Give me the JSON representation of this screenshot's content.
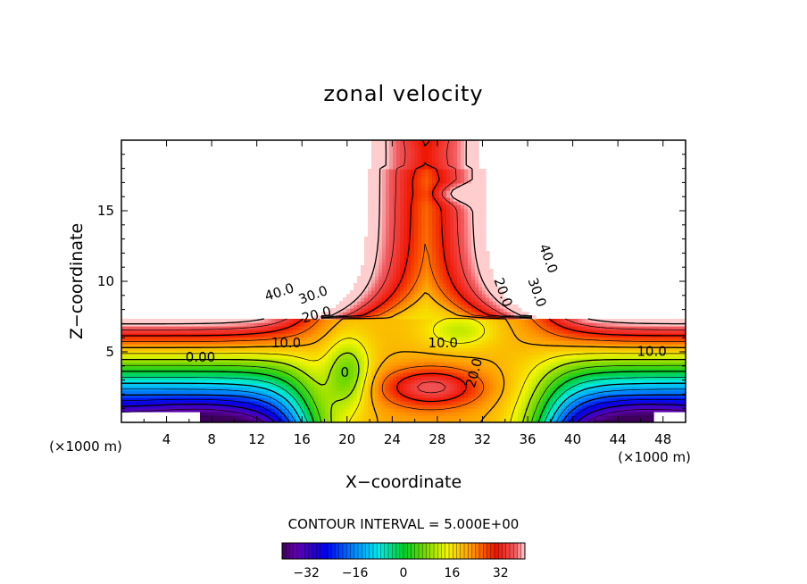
{
  "chart_data": {
    "type": "heatmap",
    "title": "zonal velocity",
    "xlabel": "X−coordinate",
    "ylabel": "Z−coordinate",
    "x_unit_label": "(×1000 m)",
    "xlim": [
      0,
      50
    ],
    "ylim": [
      0,
      20
    ],
    "x_ticks": [
      4,
      8,
      12,
      16,
      20,
      24,
      28,
      32,
      36,
      40,
      44,
      48
    ],
    "y_ticks": [
      5,
      10,
      15
    ],
    "contour_interval_text": "CONTOUR INTERVAL = 5.000E+00",
    "contour_interval": 5,
    "contour_labels": [
      {
        "text": "40.0",
        "x": 14.0,
        "y": 9.2,
        "angle": -18
      },
      {
        "text": "30.0",
        "x": 17.0,
        "y": 9.0,
        "angle": -20
      },
      {
        "text": "20.0",
        "x": 17.3,
        "y": 7.6,
        "angle": -15
      },
      {
        "text": "10.0",
        "x": 14.6,
        "y": 5.6,
        "angle": 0
      },
      {
        "text": "0.00",
        "x": 7.0,
        "y": 4.6,
        "angle": 0
      },
      {
        "text": "0",
        "x": 19.8,
        "y": 3.5,
        "angle": 0
      },
      {
        "text": "10.0",
        "x": 28.5,
        "y": 5.6,
        "angle": 0
      },
      {
        "text": "20.0",
        "x": 31.3,
        "y": 3.5,
        "angle": -75
      },
      {
        "text": "20.0",
        "x": 33.8,
        "y": 9.2,
        "angle": 70
      },
      {
        "text": "30.0",
        "x": 36.8,
        "y": 9.2,
        "angle": 70
      },
      {
        "text": "40.0",
        "x": 37.8,
        "y": 11.6,
        "angle": 70
      },
      {
        "text": "10.0",
        "x": 47.0,
        "y": 5.0,
        "angle": 0
      }
    ],
    "colorbar": {
      "vmin": -40,
      "vmax": 40,
      "ticks": [
        -32,
        -16,
        0,
        16,
        32
      ],
      "tick_labels": [
        "−32",
        "−16",
        "0",
        "16",
        "32"
      ]
    },
    "grid": false
  }
}
